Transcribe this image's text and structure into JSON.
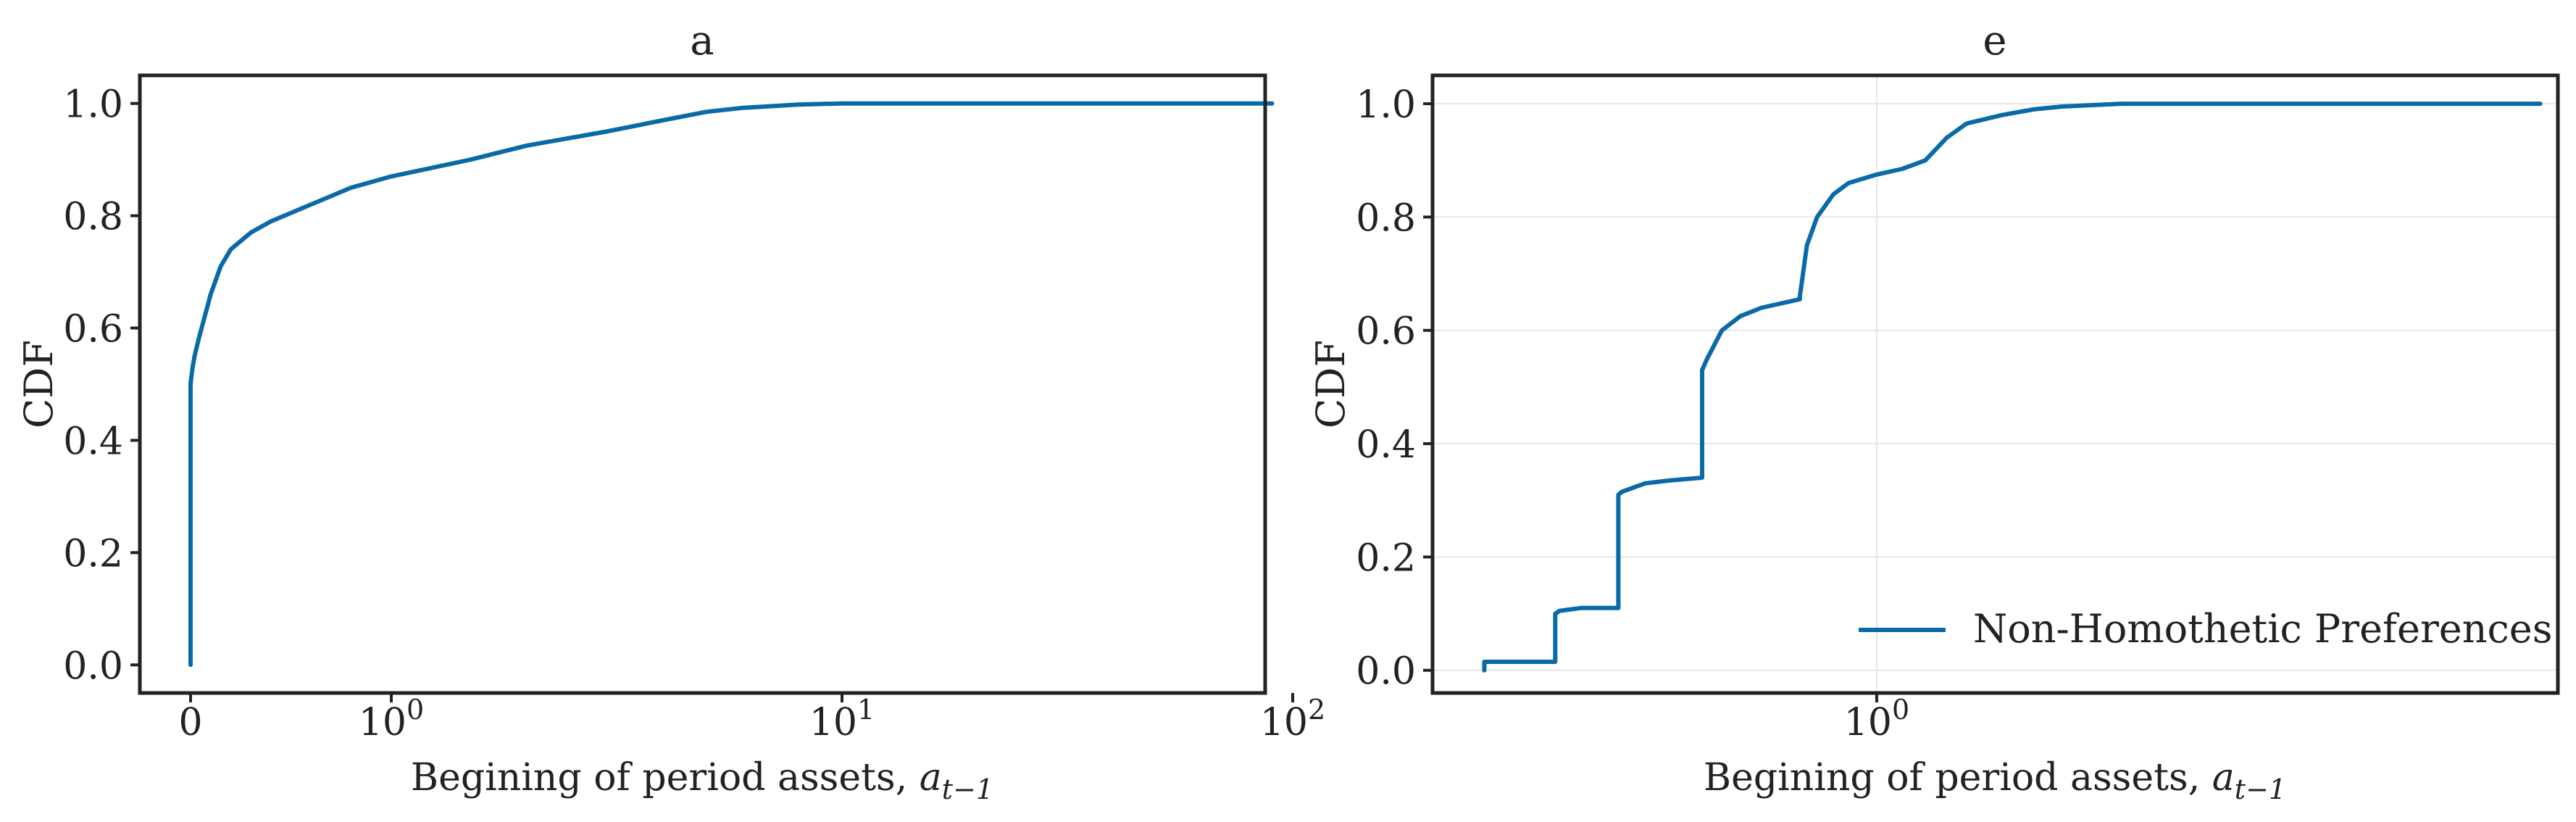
{
  "colors": {
    "series": "#0a6aa8",
    "axes": "#222222",
    "grid": "#e6e6e6"
  },
  "chart_data": [
    {
      "id": "left",
      "type": "line",
      "title": "a",
      "xlabel_text": "Begining of period assets, ",
      "xlabel_var": "a",
      "xlabel_sub": "t−1",
      "ylabel": "CDF",
      "xscale": "symlog",
      "ylim": [
        -0.05,
        1.05
      ],
      "grid": false,
      "legend": null,
      "xticks": [
        {
          "value": 0,
          "base": "0",
          "exp": ""
        },
        {
          "value": 1,
          "base": "10",
          "exp": "0"
        },
        {
          "value": 10,
          "base": "10",
          "exp": "1"
        },
        {
          "value": 100,
          "base": "10",
          "exp": "2"
        }
      ],
      "yticks": [
        "0.0",
        "0.2",
        "0.4",
        "0.6",
        "0.8",
        "1.0"
      ],
      "series": [
        {
          "x": [
            0,
            0,
            0.003,
            0.01,
            0.02,
            0.04,
            0.07,
            0.1,
            0.15,
            0.2,
            0.3,
            0.4,
            0.6,
            0.8,
            1.0,
            1.5,
            2.0,
            3.0,
            4.0,
            5.0,
            6.0,
            8.0,
            10,
            20,
            50,
            90
          ],
          "y": [
            0.0,
            0.5,
            0.51,
            0.53,
            0.55,
            0.58,
            0.62,
            0.66,
            0.71,
            0.74,
            0.77,
            0.79,
            0.82,
            0.85,
            0.87,
            0.9,
            0.925,
            0.95,
            0.97,
            0.985,
            0.992,
            0.998,
            1.0,
            1.0,
            1.0,
            1.0
          ]
        }
      ]
    },
    {
      "id": "right",
      "type": "line",
      "title": "e",
      "xlabel_text": "Begining of period assets, ",
      "xlabel_var": "a",
      "xlabel_sub": "t−1",
      "ylabel": "CDF",
      "xscale": "log",
      "xlim": [
        0.1895,
        12.82
      ],
      "ylim": [
        -0.04,
        1.05
      ],
      "grid": true,
      "legend": {
        "location": "lower right"
      },
      "xticks": [
        {
          "value": 1,
          "base": "10",
          "exp": "0"
        }
      ],
      "yticks": [
        "0.0",
        "0.2",
        "0.4",
        "0.6",
        "0.8",
        "1.0"
      ],
      "series": [
        {
          "name": "Non-Homothetic Preferences",
          "x": [
            0.23,
            0.23,
            0.232,
            0.3,
            0.3,
            0.305,
            0.33,
            0.38,
            0.38,
            0.385,
            0.42,
            0.46,
            0.52,
            0.52,
            0.53,
            0.56,
            0.6,
            0.65,
            0.75,
            0.75,
            0.77,
            0.8,
            0.85,
            0.9,
            1.0,
            1.1,
            1.2,
            1.3,
            1.4,
            1.6,
            1.8,
            2.0,
            2.5,
            3.0,
            5.0,
            12.0
          ],
          "y": [
            0.0,
            0.015,
            0.015,
            0.015,
            0.1,
            0.105,
            0.11,
            0.11,
            0.31,
            0.315,
            0.33,
            0.335,
            0.34,
            0.53,
            0.55,
            0.6,
            0.625,
            0.64,
            0.655,
            0.66,
            0.75,
            0.8,
            0.84,
            0.86,
            0.875,
            0.885,
            0.9,
            0.94,
            0.965,
            0.98,
            0.99,
            0.995,
            1.0,
            1.0,
            1.0,
            1.0
          ]
        }
      ]
    }
  ]
}
